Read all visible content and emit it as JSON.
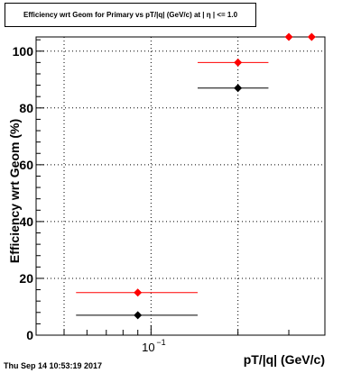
{
  "chart_data": {
    "type": "scatter",
    "title": "Efficiency wrt Geom for Primary vs pT/|q| (GeV/c) at | η | <= 1.0",
    "xlabel": "pT/|q| (GeV/c)",
    "ylabel": "Efficiency wrt Geom (%)",
    "x_scale": "log",
    "xlim": [
      0.04,
      0.4
    ],
    "ylim": [
      0,
      105
    ],
    "grid": true,
    "y_ticks": [
      "0",
      "20",
      "40",
      "60",
      "80",
      "100"
    ],
    "x_tick_label": {
      "base": "10",
      "exponent": "−1"
    },
    "series": [
      {
        "color": "#ff0000",
        "points": [
          {
            "x": 0.09,
            "y": 15,
            "xlow": 0.055,
            "xhigh": 0.145
          },
          {
            "x": 0.2,
            "y": 96,
            "xlow": 0.145,
            "xhigh": 0.255
          },
          {
            "x": 0.3,
            "y": 105,
            "xlow": 0.3,
            "xhigh": 0.3
          },
          {
            "x": 0.36,
            "y": 105,
            "xlow": 0.36,
            "xhigh": 0.36
          }
        ]
      },
      {
        "color": "#000000",
        "points": [
          {
            "x": 0.09,
            "y": 7,
            "xlow": 0.055,
            "xhigh": 0.145
          },
          {
            "x": 0.2,
            "y": 87,
            "xlow": 0.145,
            "xhigh": 0.255
          }
        ]
      }
    ]
  },
  "footer": {
    "timestamp": "Thu Sep 14 10:53:19 2017"
  }
}
